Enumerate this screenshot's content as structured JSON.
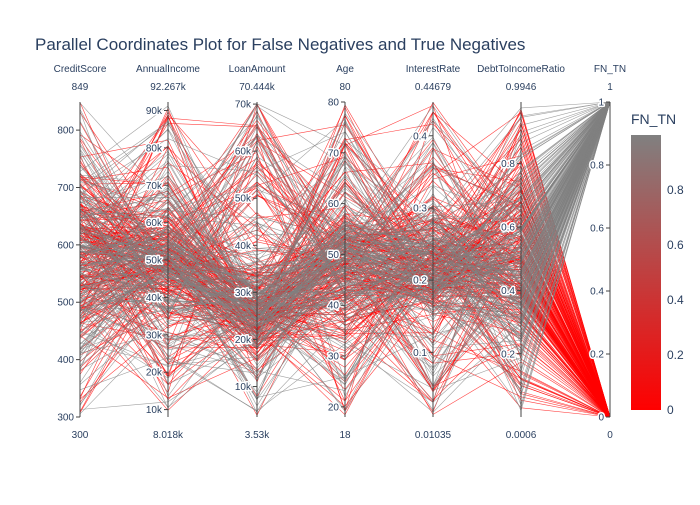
{
  "chart_data": {
    "type": "parallel-coordinates",
    "title": "Parallel Coordinates Plot for False Negatives and True Negatives",
    "dimensions": [
      {
        "name": "CreditScore",
        "min_label": "300",
        "max_label": "849",
        "min": 300,
        "max": 849,
        "ticks": [
          300,
          400,
          500,
          600,
          700,
          800
        ],
        "tick_labels": [
          "300",
          "400",
          "500",
          "600",
          "700",
          "800"
        ]
      },
      {
        "name": "AnnualIncome",
        "min_label": "8.018k",
        "max_label": "92.267k",
        "min": 8018,
        "max": 92267,
        "ticks": [
          10000,
          20000,
          30000,
          40000,
          50000,
          60000,
          70000,
          80000,
          90000
        ],
        "tick_labels": [
          "10k",
          "20k",
          "30k",
          "40k",
          "50k",
          "60k",
          "70k",
          "80k",
          "90k"
        ]
      },
      {
        "name": "LoanAmount",
        "min_label": "3.53k",
        "max_label": "70.444k",
        "min": 3530,
        "max": 70444,
        "ticks": [
          10000,
          20000,
          30000,
          40000,
          50000,
          60000,
          70000
        ],
        "tick_labels": [
          "10k",
          "20k",
          "30k",
          "40k",
          "50k",
          "60k",
          "70k"
        ]
      },
      {
        "name": "Age",
        "min_label": "18",
        "max_label": "80",
        "min": 18,
        "max": 80,
        "ticks": [
          20,
          30,
          40,
          50,
          60,
          70,
          80
        ],
        "tick_labels": [
          "20",
          "30",
          "40",
          "50",
          "60",
          "70",
          "80"
        ]
      },
      {
        "name": "InterestRate",
        "min_label": "0.01035",
        "max_label": "0.44679",
        "min": 0.01035,
        "max": 0.44679,
        "ticks": [
          0.1,
          0.2,
          0.3,
          0.4
        ],
        "tick_labels": [
          "0.1",
          "0.2",
          "0.3",
          "0.4"
        ]
      },
      {
        "name": "DebtToIncomeRatio",
        "min_label": "0.0006",
        "max_label": "0.9946",
        "min": 0.0006,
        "max": 0.9946,
        "ticks": [
          0.2,
          0.4,
          0.6,
          0.8
        ],
        "tick_labels": [
          "0.2",
          "0.4",
          "0.6",
          "0.8"
        ]
      },
      {
        "name": "FN_TN",
        "min_label": "0",
        "max_label": "1",
        "min": 0,
        "max": 1,
        "ticks": [
          0,
          0.2,
          0.4,
          0.6,
          0.8,
          1
        ],
        "tick_labels": [
          "0",
          "0.2",
          "0.4",
          "0.6",
          "0.8",
          "1"
        ]
      }
    ],
    "colorbar": {
      "title": "FN_TN",
      "range": [
        0,
        1
      ],
      "ticks": [
        0,
        0.2,
        0.4,
        0.6,
        0.8
      ],
      "tick_labels": [
        "0",
        "0.2",
        "0.4",
        "0.6",
        "0.8"
      ],
      "colors": [
        "#ff0000",
        "#808080"
      ]
    },
    "line_colors": {
      "value_0": "#ff0000",
      "value_1": "#808080"
    }
  }
}
